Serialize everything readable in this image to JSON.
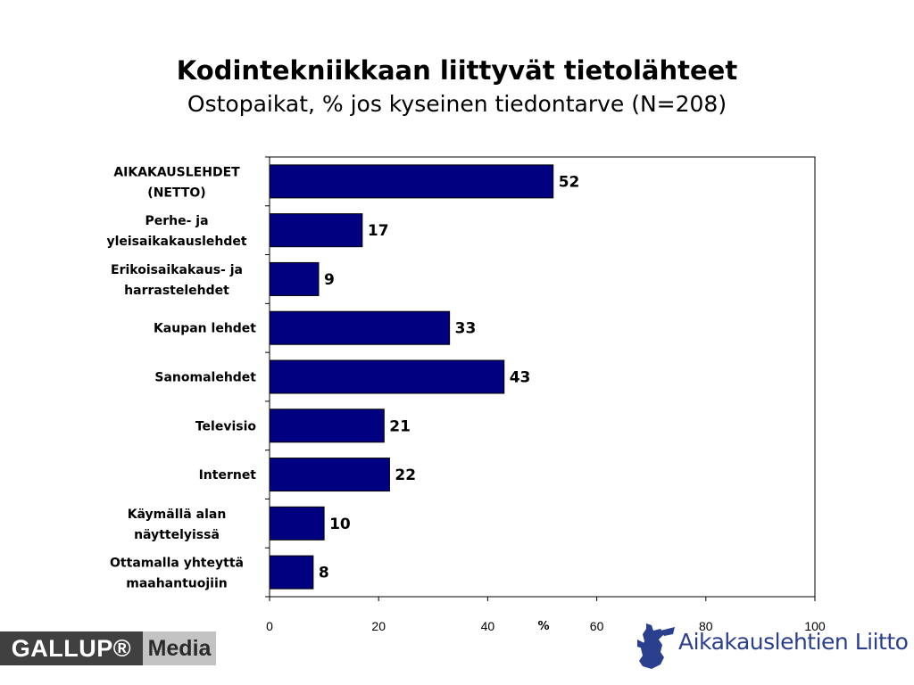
{
  "header": {
    "title": "Kodintekniikkaan liittyvät tietolähteet",
    "subtitle": "Ostopaikat, % jos kyseinen tiedontarve (N=208)"
  },
  "chart_data": {
    "type": "bar",
    "orientation": "horizontal",
    "title": "Kodintekniikkaan liittyvät tietolähteet",
    "subtitle": "Ostopaikat, % jos kyseinen tiedontarve (N=208)",
    "categories": [
      [
        "AIKAKAUSLEHDET",
        "(NETTO)"
      ],
      [
        "Perhe- ja",
        "yleisaikakauslehdet"
      ],
      [
        "Erikoisaikakaus- ja",
        "harrastelehdet"
      ],
      [
        "Kaupan lehdet"
      ],
      [
        "Sanomalehdet"
      ],
      [
        "Televisio"
      ],
      [
        "Internet"
      ],
      [
        "Käymällä alan",
        "näyttelyissä"
      ],
      [
        "Ottamalla yhteyttä",
        "maahantuojiin"
      ]
    ],
    "values": [
      52,
      17,
      9,
      33,
      43,
      21,
      22,
      10,
      8
    ],
    "xlabel": "%",
    "xlim": [
      0,
      100
    ],
    "xticks": [
      0,
      20,
      40,
      60,
      80,
      100
    ],
    "bar_color": "#000080",
    "grid": false,
    "legend": "none"
  },
  "logos": {
    "gallup_left": "GALLUP®",
    "gallup_right": "Media",
    "aikakauslehtien": "Aikakauslehtien Liitto"
  },
  "colors": {
    "bar": "#000080",
    "logo_blue": "#2b3f8f",
    "gallup_dark": "#404040",
    "gallup_light": "#c3c3c3"
  }
}
